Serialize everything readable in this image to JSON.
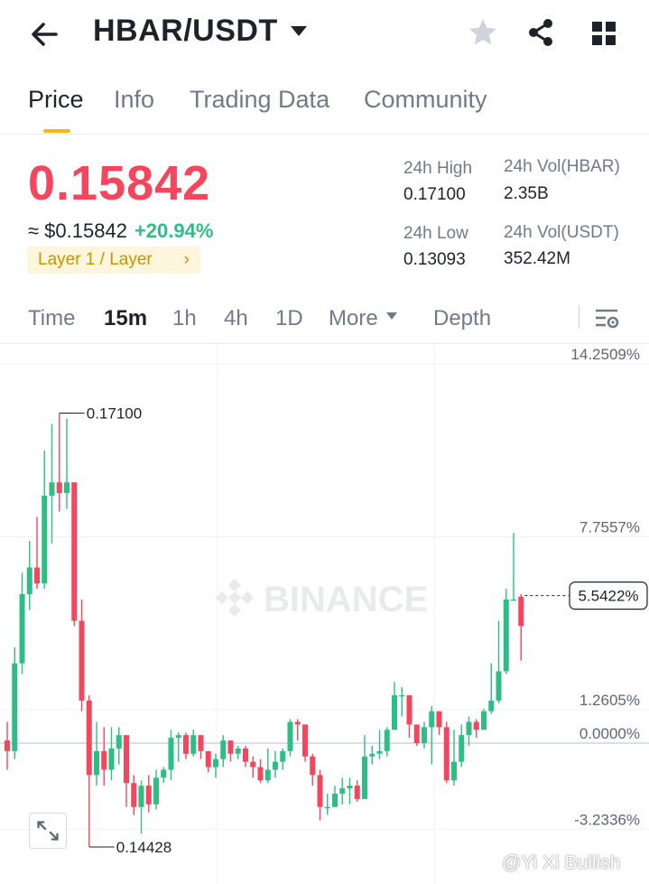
{
  "header": {
    "pair": "HBAR/USDT",
    "icons": [
      "back-arrow-icon",
      "caret-down-icon",
      "star-icon",
      "share-icon",
      "grid-menu-icon"
    ]
  },
  "tabs": [
    {
      "label": "Price",
      "active": true
    },
    {
      "label": "Info",
      "active": false
    },
    {
      "label": "Trading Data",
      "active": false
    },
    {
      "label": "Community",
      "active": false
    }
  ],
  "ticker": {
    "last_price": "0.15842",
    "fiat_price": "≈ $0.15842",
    "change_pct": "+20.94%",
    "sector_tag": "Layer 1 / Layer",
    "stats": {
      "high_label": "24h High",
      "high_value": "0.17100",
      "low_label": "24h Low",
      "low_value": "0.13093",
      "vol_base_label": "24h Vol(HBAR)",
      "vol_base_value": "2.35B",
      "vol_quote_label": "24h Vol(USDT)",
      "vol_quote_value": "352.42M"
    }
  },
  "intervals": {
    "items": [
      {
        "label": "Time",
        "active": false
      },
      {
        "label": "15m",
        "active": true
      },
      {
        "label": "1h",
        "active": false
      },
      {
        "label": "4h",
        "active": false
      },
      {
        "label": "1D",
        "active": false
      },
      {
        "label": "More",
        "active": false
      },
      {
        "label": "Depth",
        "active": false
      }
    ]
  },
  "colors": {
    "up": "#2ebd85",
    "down": "#f6465d",
    "accent": "#f0b90b",
    "text_primary": "#1e2329",
    "text_secondary": "#707a8a"
  },
  "chart_data": {
    "type": "candlestick",
    "y_axis_unit": "percent",
    "y_ticks": [
      {
        "label": "14.2509%",
        "value": 14.2509
      },
      {
        "label": "7.7557%",
        "value": 7.7557
      },
      {
        "label": "1.2605%",
        "value": 1.2605
      },
      {
        "label": "0.0000%",
        "value": 0.0
      },
      {
        "label": "-3.2336%",
        "value": -3.2336
      }
    ],
    "y_range": [
      -3.8,
      15.5
    ],
    "current_pct_label": "5.5422%",
    "current_pct": 5.5422,
    "annotations": [
      {
        "label": "0.17100",
        "kind": "high"
      },
      {
        "label": "0.14428",
        "kind": "low"
      }
    ],
    "watermark": "BINANCE",
    "candles": [
      [
        0.1,
        -0.3,
        0.8,
        -1.0
      ],
      [
        -0.3,
        3.0,
        3.6,
        -0.6
      ],
      [
        3.0,
        5.6,
        6.4,
        2.6
      ],
      [
        5.6,
        6.6,
        7.6,
        5.0
      ],
      [
        6.6,
        6.0,
        8.5,
        5.8
      ],
      [
        6.0,
        9.3,
        11.0,
        5.8
      ],
      [
        9.3,
        9.8,
        12.0,
        7.5
      ],
      [
        9.8,
        9.4,
        12.4,
        8.7
      ],
      [
        9.4,
        9.8,
        12.2,
        8.8
      ],
      [
        9.8,
        4.6,
        9.8,
        4.4
      ],
      [
        4.6,
        1.6,
        5.4,
        1.2
      ],
      [
        1.6,
        -1.2,
        1.8,
        -3.9
      ],
      [
        -1.2,
        -0.3,
        0.8,
        -1.6
      ],
      [
        -0.3,
        -1.0,
        0.6,
        -1.6
      ],
      [
        -1.0,
        -0.2,
        0.6,
        -1.4
      ],
      [
        -0.2,
        0.3,
        0.6,
        -0.8
      ],
      [
        0.3,
        -1.5,
        -0.1,
        -2.4
      ],
      [
        -1.5,
        -2.4,
        -1.2,
        -2.7
      ],
      [
        -2.4,
        -1.6,
        -1.4,
        -3.4
      ],
      [
        -1.6,
        -2.3,
        -1.2,
        -2.6
      ],
      [
        -2.3,
        -1.3,
        -1.0,
        -2.5
      ],
      [
        -1.3,
        -1.0,
        -0.9,
        -1.5
      ],
      [
        -1.0,
        0.2,
        0.5,
        -1.4
      ],
      [
        0.2,
        0.3,
        0.4,
        -0.7
      ],
      [
        0.3,
        -0.4,
        0.4,
        -0.6
      ],
      [
        -0.4,
        0.3,
        0.5,
        -0.5
      ],
      [
        0.3,
        -0.3,
        0.3,
        -0.6
      ],
      [
        -0.3,
        -0.9,
        -0.7,
        -1.1
      ],
      [
        -0.9,
        -0.6,
        -0.4,
        -1.3
      ],
      [
        -0.6,
        0.1,
        0.3,
        -0.9
      ],
      [
        0.1,
        -0.4,
        0.1,
        -0.7
      ],
      [
        -0.4,
        -0.2,
        -0.1,
        -0.6
      ],
      [
        -0.2,
        -0.7,
        -0.1,
        -0.9
      ],
      [
        -0.7,
        -0.9,
        -0.5,
        -1.3
      ],
      [
        -0.9,
        -1.4,
        -0.6,
        -1.5
      ],
      [
        -1.4,
        -1.0,
        -0.2,
        -1.5
      ],
      [
        -1.0,
        -0.7,
        -0.3,
        -1.3
      ],
      [
        -0.7,
        -0.3,
        -0.2,
        -1.0
      ],
      [
        -0.3,
        0.8,
        0.9,
        -0.5
      ],
      [
        0.8,
        0.7,
        0.9,
        0.1
      ],
      [
        0.7,
        -0.5,
        0.4,
        -0.7
      ],
      [
        -0.5,
        -1.2,
        -0.4,
        -1.6
      ],
      [
        -1.2,
        -2.4,
        -1.0,
        -2.9
      ],
      [
        -2.4,
        -2.4,
        -1.9,
        -2.7
      ],
      [
        -2.4,
        -1.9,
        -1.6,
        -2.4
      ],
      [
        -1.9,
        -1.7,
        -1.3,
        -2.3
      ],
      [
        -1.7,
        -1.6,
        -1.3,
        -2.3
      ],
      [
        -1.6,
        -2.1,
        -1.4,
        -2.2
      ],
      [
        -2.1,
        -0.5,
        0.3,
        -2.1
      ],
      [
        -0.5,
        -0.4,
        -0.1,
        -0.8
      ],
      [
        -0.4,
        -0.3,
        0.5,
        -0.6
      ],
      [
        -0.3,
        0.5,
        0.6,
        -0.5
      ],
      [
        0.5,
        1.8,
        2.3,
        0.5
      ],
      [
        1.8,
        1.8,
        2.1,
        1.0
      ],
      [
        1.8,
        0.7,
        0.9,
        0.2
      ],
      [
        0.7,
        0.0,
        0.3,
        -0.1
      ],
      [
        0.0,
        0.6,
        0.8,
        -0.2
      ],
      [
        0.6,
        1.2,
        1.4,
        -0.8
      ],
      [
        1.2,
        0.6,
        1.1,
        0.3
      ],
      [
        0.6,
        -1.4,
        0.8,
        -1.5
      ],
      [
        -1.4,
        -0.7,
        0.5,
        -1.6
      ],
      [
        -0.7,
        0.3,
        0.7,
        -0.9
      ],
      [
        0.3,
        0.8,
        1.0,
        -0.1
      ],
      [
        0.8,
        0.5,
        0.9,
        0.2
      ],
      [
        0.5,
        1.2,
        1.3,
        0.5
      ],
      [
        1.2,
        1.6,
        3.0,
        1.1
      ],
      [
        1.6,
        2.7,
        4.6,
        1.5
      ],
      [
        2.7,
        5.4,
        5.8,
        2.6
      ],
      [
        5.4,
        5.4,
        7.9,
        5.4
      ],
      [
        5.5,
        4.4,
        5.6,
        3.1
      ]
    ]
  }
}
